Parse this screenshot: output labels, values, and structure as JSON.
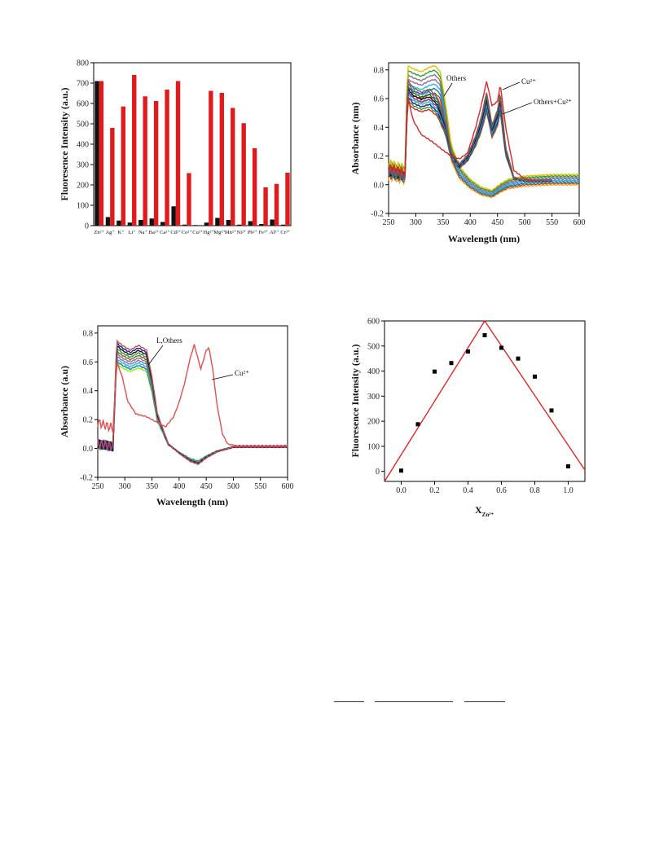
{
  "chart_data": [
    {
      "id": "panel_a",
      "type": "bar",
      "ylabel": "Fluoresence Intensity (a.u.)",
      "ylim": [
        0,
        800
      ],
      "yticks": [
        0,
        100,
        200,
        300,
        400,
        500,
        600,
        700,
        800
      ],
      "categories": [
        "Zn²⁺",
        "Ag⁺",
        "K⁺",
        "Li⁺",
        "Na⁺",
        "Ba²⁺",
        "Ca²⁺",
        "Cd²⁺",
        "Co²⁺",
        "Cu²⁺",
        "Hg²⁺",
        "Mg²⁺",
        "Mn²⁺",
        "Ni²⁺",
        "Pb²⁺",
        "Fe³⁺",
        "Al³⁺",
        "Cr³⁺"
      ],
      "series": [
        {
          "color": "#111111",
          "values": [
            710,
            42,
            25,
            15,
            28,
            35,
            18,
            95,
            5,
            3,
            15,
            38,
            28,
            5,
            22,
            8,
            30,
            5
          ]
        },
        {
          "color": "#e31a1c",
          "values": [
            710,
            480,
            585,
            740,
            635,
            612,
            668,
            710,
            258,
            0,
            662,
            652,
            578,
            503,
            380,
            188,
            205,
            260
          ]
        }
      ]
    },
    {
      "id": "panel_b",
      "type": "line",
      "xlabel": "Wavelength (nm)",
      "ylabel": "Absorbance (nm)",
      "xlim": [
        250,
        600
      ],
      "ylim": [
        -0.2,
        0.85
      ],
      "xticks": [
        250,
        300,
        350,
        400,
        450,
        500,
        550,
        600
      ],
      "yticks": [
        -0.2,
        0.0,
        0.2,
        0.4,
        0.6,
        0.8
      ],
      "annotations": [
        "Others",
        "Cu²⁺",
        "Others+Cu²⁺"
      ],
      "groups": {
        "others_end": 600,
        "cu_end": 550,
        "others_colors": [
          "#f5a623",
          "#a0522d",
          "#1f77b4",
          "#17becf",
          "#9467bd",
          "#7f7f7f",
          "#2ca02c",
          "#e0c000"
        ],
        "cu_colors": [
          "#d62728",
          "#2ca02c",
          "#1f1f9a",
          "#17becf",
          "#7b2cbf",
          "#111111",
          "#1a6b1a",
          "#3b6fb6",
          "#8c564b"
        ]
      },
      "profiles": {
        "others": {
          "x": [
            250,
            270,
            280,
            285,
            295,
            310,
            325,
            335,
            345,
            355,
            365,
            380,
            400,
            420,
            440,
            455,
            470,
            500,
            550,
            600
          ],
          "y": [
            0.08,
            0.06,
            0.05,
            0.7,
            0.68,
            0.66,
            0.69,
            0.7,
            0.66,
            0.45,
            0.2,
            0.06,
            -0.02,
            -0.07,
            -0.09,
            -0.05,
            -0.02,
            0.0,
            0.01,
            0.01
          ]
        },
        "cu": {
          "x": [
            250,
            270,
            280,
            285,
            295,
            310,
            325,
            340,
            355,
            365,
            380,
            395,
            410,
            420,
            430,
            440,
            450,
            455,
            465,
            480,
            500,
            550
          ],
          "y": [
            0.1,
            0.08,
            0.06,
            0.7,
            0.65,
            0.62,
            0.64,
            0.58,
            0.42,
            0.22,
            0.14,
            0.2,
            0.33,
            0.45,
            0.62,
            0.4,
            0.5,
            0.62,
            0.25,
            0.05,
            0.03,
            0.03
          ]
        },
        "cu_red": {
          "x": [
            250,
            270,
            280,
            285,
            295,
            310,
            330,
            350,
            365,
            380,
            395,
            410,
            420,
            430,
            440,
            450,
            455,
            465,
            480,
            500,
            520
          ],
          "y": [
            0.12,
            0.1,
            0.08,
            0.62,
            0.45,
            0.35,
            0.3,
            0.24,
            0.2,
            0.18,
            0.22,
            0.4,
            0.55,
            0.72,
            0.55,
            0.58,
            0.7,
            0.4,
            0.1,
            0.04,
            0.03
          ]
        }
      }
    },
    {
      "id": "panel_c",
      "type": "line",
      "xlabel": "Wavelength (nm)",
      "ylabel": "Absorbance (a.u)",
      "xlim": [
        250,
        600
      ],
      "ylim": [
        -0.2,
        0.85
      ],
      "xticks": [
        250,
        300,
        350,
        400,
        450,
        500,
        550,
        600
      ],
      "yticks": [
        -0.2,
        0.0,
        0.2,
        0.4,
        0.6,
        0.8
      ],
      "annotations": [
        "L,Others",
        "Cu²⁺"
      ],
      "groups": {
        "others_colors": [
          "#7cfc00",
          "#1f77b4",
          "#17becf",
          "#9467bd",
          "#7f7f7f",
          "#8c564b",
          "#2ca02c",
          "#111111",
          "#1f1f9a",
          "#c05050"
        ]
      },
      "profiles": {
        "others": {
          "x": [
            250,
            270,
            278,
            285,
            295,
            310,
            325,
            340,
            350,
            360,
            380,
            400,
            420,
            435,
            450,
            470,
            500,
            550,
            600
          ],
          "y": [
            0.03,
            0.02,
            0.01,
            0.68,
            0.65,
            0.62,
            0.65,
            0.62,
            0.45,
            0.22,
            0.03,
            -0.03,
            -0.08,
            -0.1,
            -0.06,
            -0.02,
            0.01,
            0.01,
            0.01
          ]
        },
        "cu": {
          "x": [
            250,
            265,
            278,
            285,
            295,
            305,
            320,
            340,
            360,
            375,
            390,
            400,
            410,
            420,
            428,
            435,
            440,
            450,
            455,
            462,
            470,
            480,
            490,
            505,
            550,
            600
          ],
          "y": [
            0.18,
            0.16,
            0.14,
            0.6,
            0.5,
            0.33,
            0.24,
            0.22,
            0.18,
            0.15,
            0.22,
            0.32,
            0.45,
            0.62,
            0.72,
            0.62,
            0.55,
            0.68,
            0.7,
            0.55,
            0.3,
            0.1,
            0.03,
            0.02,
            0.02,
            0.02
          ]
        }
      }
    },
    {
      "id": "panel_d",
      "type": "scatter",
      "xlabel": "X",
      "xlabel_sub": "Zn²⁺",
      "ylabel": "Fluoresence Intensity (a.u.)",
      "xlim": [
        -0.1,
        1.1
      ],
      "ylim": [
        -40,
        600
      ],
      "xticks": [
        0.0,
        0.2,
        0.4,
        0.6,
        0.8,
        1.0
      ],
      "yticks": [
        0,
        100,
        200,
        300,
        400,
        500,
        600
      ],
      "points": {
        "x": [
          0.0,
          0.1,
          0.2,
          0.3,
          0.4,
          0.5,
          0.6,
          0.7,
          0.8,
          0.9,
          1.0
        ],
        "y": [
          3,
          188,
          398,
          432,
          478,
          543,
          493,
          450,
          378,
          243,
          20
        ]
      },
      "fit_lines": [
        {
          "color": "#e31a1c",
          "x": [
            -0.1,
            0.5
          ],
          "y": [
            -40,
            600
          ]
        },
        {
          "color": "#e31a1c",
          "x": [
            0.5,
            1.1
          ],
          "y": [
            600,
            5
          ]
        }
      ]
    }
  ]
}
